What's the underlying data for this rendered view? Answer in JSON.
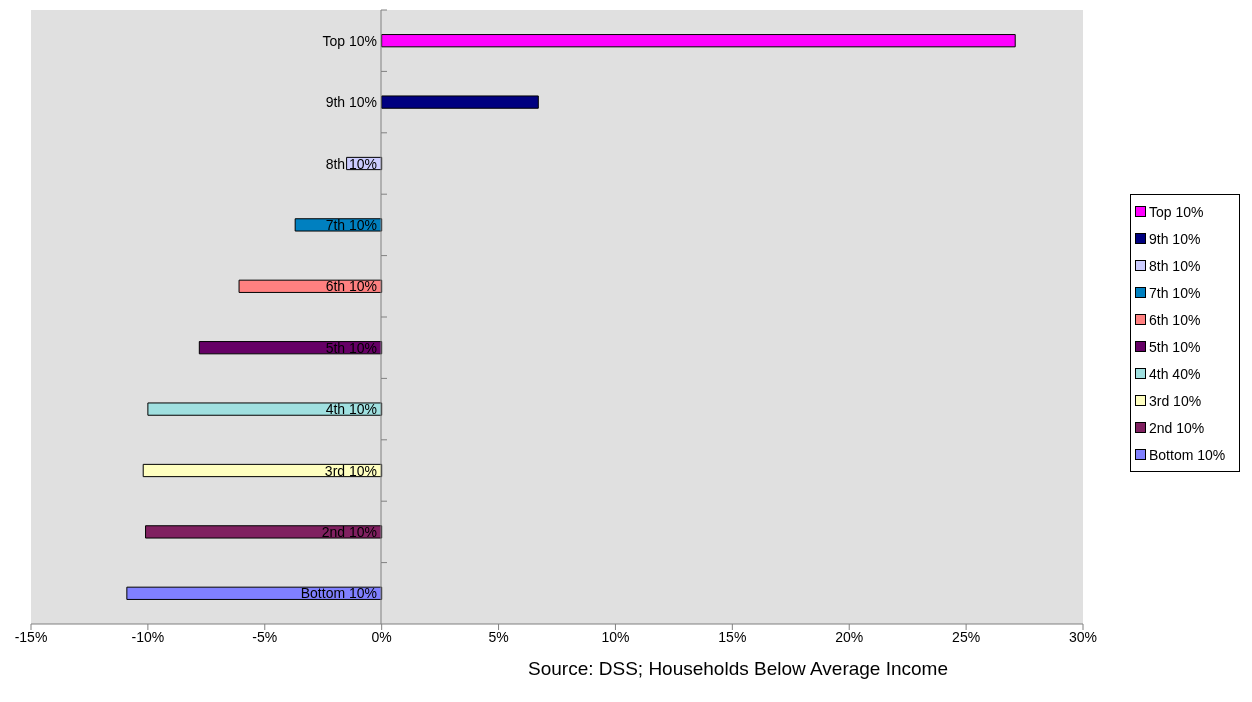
{
  "chart_data": {
    "type": "bar",
    "orientation": "horizontal",
    "stacked": true,
    "categories": [
      "Top 10%",
      "9th 10%",
      "8th 10%",
      "7th 10%",
      "6th 10%",
      "5th 10%",
      "4th 10%",
      "3rd 10%",
      "2nd 10%",
      "Bottom 10%"
    ],
    "series": [
      {
        "name": "Top 10%",
        "color": "#ff00ff",
        "values": [
          27.1,
          null,
          null,
          null,
          null,
          null,
          null,
          null,
          null,
          null
        ]
      },
      {
        "name": "9th 10%",
        "color": "#000080",
        "values": [
          null,
          6.7,
          null,
          null,
          null,
          null,
          null,
          null,
          null,
          null
        ]
      },
      {
        "name": "8th 10%",
        "color": "#ccccff",
        "values": [
          null,
          null,
          -1.5,
          null,
          null,
          null,
          null,
          null,
          null,
          null
        ]
      },
      {
        "name": "7th 10%",
        "color": "#0080c0",
        "values": [
          null,
          null,
          null,
          -3.7,
          null,
          null,
          null,
          null,
          null,
          null
        ]
      },
      {
        "name": "6th 10%",
        "color": "#ff8080",
        "values": [
          null,
          null,
          null,
          null,
          -6.1,
          null,
          null,
          null,
          null,
          null
        ]
      },
      {
        "name": "5th 10%",
        "color": "#660066",
        "values": [
          null,
          null,
          null,
          null,
          null,
          -7.8,
          null,
          null,
          null,
          null
        ]
      },
      {
        "name": "4th 40%",
        "color": "#a0e0e0",
        "values": [
          null,
          null,
          null,
          null,
          null,
          null,
          -10.0,
          null,
          null,
          null
        ]
      },
      {
        "name": "3rd 10%",
        "color": "#ffffc0",
        "values": [
          null,
          null,
          null,
          null,
          null,
          null,
          null,
          -10.2,
          null,
          null
        ]
      },
      {
        "name": "2nd 10%",
        "color": "#802060",
        "values": [
          null,
          null,
          null,
          null,
          null,
          null,
          null,
          null,
          -10.1,
          null
        ]
      },
      {
        "name": "Bottom 10%",
        "color": "#8080ff",
        "values": [
          null,
          null,
          null,
          null,
          null,
          null,
          null,
          null,
          null,
          -10.9
        ]
      }
    ],
    "xlim": [
      -15,
      30
    ],
    "xticks": [
      {
        "value": -15,
        "label": "-15%"
      },
      {
        "value": -10,
        "label": "-10%"
      },
      {
        "value": -5,
        "label": "-5%"
      },
      {
        "value": 0,
        "label": "0%"
      },
      {
        "value": 5,
        "label": "5%"
      },
      {
        "value": 10,
        "label": "10%"
      },
      {
        "value": 15,
        "label": "15%"
      },
      {
        "value": 20,
        "label": "20%"
      },
      {
        "value": 25,
        "label": "25%"
      },
      {
        "value": 30,
        "label": "30%"
      }
    ],
    "legend": "right",
    "annotations": [
      "Source: DSS; Households Below Average Income"
    ]
  }
}
